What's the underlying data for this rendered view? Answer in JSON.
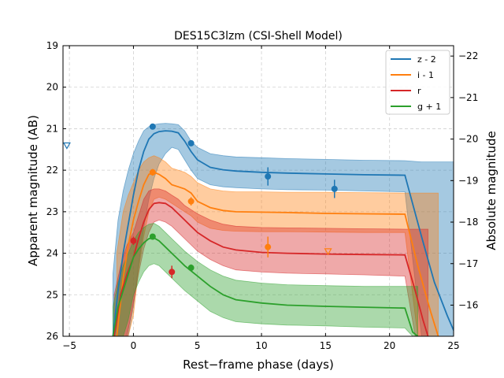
{
  "chart_data": {
    "type": "line",
    "title": "DES15C3lzm (CSI-Shell Model)",
    "xlabel": "Rest−frame phase (days)",
    "ylabel": "Apparent magnitude (AB)",
    "ylabel_right": "Absolute magnitude",
    "xlim": [
      -5.5,
      25
    ],
    "ylim": [
      26,
      19
    ],
    "ylim_right": [
      -15.25,
      -22.25
    ],
    "x_ticks": [
      -5,
      0,
      5,
      10,
      15,
      20,
      25
    ],
    "y_ticks": [
      19,
      20,
      21,
      22,
      23,
      24,
      25,
      26
    ],
    "y_right_ticks": [
      -16,
      -17,
      -18,
      -19,
      -20,
      -21,
      -22
    ],
    "grid": true,
    "legend_position": "top-right",
    "series": [
      {
        "name": "z - 2",
        "color": "#1f77b4",
        "model": {
          "x": [
            -1.6,
            -1.2,
            -0.8,
            -0.4,
            0,
            0.4,
            0.8,
            1.2,
            1.6,
            2,
            2.5,
            3,
            3.5,
            4,
            4.5,
            5,
            6,
            7,
            8,
            10,
            12,
            15,
            18,
            21.2,
            22.5,
            23.5,
            24.5,
            25.2
          ],
          "y": [
            26,
            24.9,
            24.0,
            23.3,
            22.6,
            22.0,
            21.55,
            21.25,
            21.12,
            21.07,
            21.05,
            21.06,
            21.1,
            21.3,
            21.55,
            21.75,
            21.93,
            21.99,
            22.02,
            22.05,
            22.07,
            22.09,
            22.11,
            22.12,
            23.6,
            24.7,
            25.5,
            26
          ],
          "band_upper": [
            24.5,
            23.2,
            22.5,
            22.0,
            21.6,
            21.3,
            21.05,
            20.95,
            20.9,
            20.88,
            20.87,
            20.88,
            20.9,
            21.05,
            21.3,
            21.45,
            21.6,
            21.65,
            21.68,
            21.7,
            21.72,
            21.74,
            21.76,
            21.77,
            21.8,
            21.8,
            21.8,
            21.8
          ],
          "band_lower": [
            26,
            26,
            26,
            26,
            25.3,
            24.3,
            23.4,
            22.7,
            22.2,
            21.85,
            21.6,
            21.45,
            21.5,
            21.75,
            22.0,
            22.2,
            22.35,
            22.4,
            22.42,
            22.45,
            22.47,
            22.48,
            22.5,
            22.52,
            26,
            26,
            26,
            26
          ]
        },
        "observations": [
          {
            "x": 1.5,
            "y": 20.95,
            "yerr": 0.05
          },
          {
            "x": 4.5,
            "y": 21.35,
            "yerr": 0.05
          },
          {
            "x": 10.5,
            "y": 22.15,
            "yerr": 0.22
          },
          {
            "x": 15.7,
            "y": 22.45,
            "yerr": 0.22
          }
        ],
        "upper_limits": [
          {
            "x": -5.2,
            "y": 21.4
          }
        ]
      },
      {
        "name": "i - 1",
        "color": "#ff7f0e",
        "model": {
          "x": [
            -1.3,
            -0.8,
            -0.4,
            0,
            0.4,
            0.8,
            1.2,
            1.6,
            2,
            2.5,
            3,
            3.5,
            4,
            4.5,
            5,
            6,
            7,
            8,
            10,
            12,
            15,
            18,
            21.2,
            22.2,
            23.2,
            23.8
          ],
          "y": [
            26,
            24.6,
            23.8,
            23.2,
            22.75,
            22.35,
            22.1,
            22.05,
            22.1,
            22.2,
            22.35,
            22.4,
            22.45,
            22.55,
            22.75,
            22.9,
            22.97,
            23.0,
            23.01,
            23.02,
            23.04,
            23.05,
            23.06,
            24.3,
            25.4,
            26
          ],
          "band_upper": [
            24.0,
            23.0,
            22.6,
            22.3,
            22.0,
            21.8,
            21.7,
            21.65,
            21.7,
            21.8,
            21.95,
            22.0,
            22.05,
            22.15,
            22.3,
            22.45,
            22.5,
            22.52,
            22.52,
            22.53,
            22.53,
            22.54,
            22.55,
            22.55,
            22.55,
            22.55
          ],
          "band_lower": [
            26,
            26,
            26,
            25.5,
            24.4,
            23.6,
            23.0,
            22.7,
            22.65,
            22.7,
            22.8,
            22.9,
            23.0,
            23.1,
            23.25,
            23.4,
            23.45,
            23.47,
            23.48,
            23.48,
            23.49,
            23.5,
            23.5,
            26,
            26,
            26
          ]
        },
        "observations": [
          {
            "x": 1.5,
            "y": 22.05,
            "yerr": 0.08
          },
          {
            "x": 4.5,
            "y": 22.75,
            "yerr": 0.1
          },
          {
            "x": 10.5,
            "y": 23.85,
            "yerr": 0.25
          }
        ],
        "upper_limits": [
          {
            "x": 15.2,
            "y": 23.95
          }
        ]
      },
      {
        "name": "r",
        "color": "#d62728",
        "model": {
          "x": [
            -1.5,
            -1.0,
            -0.5,
            0,
            0.4,
            0.8,
            1.2,
            1.6,
            2,
            2.5,
            3,
            3.5,
            4,
            4.5,
            5,
            6,
            7,
            8,
            10,
            12,
            15,
            18,
            21.2,
            22.0,
            22.6,
            23.0
          ],
          "y": [
            26,
            25.0,
            24.5,
            24.1,
            23.65,
            23.25,
            22.95,
            22.8,
            22.78,
            22.8,
            22.9,
            23.05,
            23.2,
            23.35,
            23.5,
            23.7,
            23.85,
            23.92,
            23.98,
            24.0,
            24.02,
            24.03,
            24.04,
            24.9,
            25.6,
            26
          ],
          "band_upper": [
            25.0,
            24.3,
            23.8,
            23.5,
            23.1,
            22.7,
            22.5,
            22.45,
            22.45,
            22.5,
            22.6,
            22.7,
            22.85,
            22.95,
            23.05,
            23.2,
            23.3,
            23.35,
            23.38,
            23.39,
            23.4,
            23.41,
            23.42,
            23.42,
            23.42,
            23.42
          ],
          "band_lower": [
            26,
            26,
            26,
            25.2,
            24.5,
            23.9,
            23.5,
            23.25,
            23.2,
            23.25,
            23.35,
            23.5,
            23.65,
            23.8,
            23.95,
            24.15,
            24.3,
            24.4,
            24.45,
            24.48,
            24.5,
            24.52,
            24.55,
            26,
            26,
            26
          ]
        },
        "observations": [
          {
            "x": 0.0,
            "y": 23.7,
            "yerr": 0.1
          },
          {
            "x": 3.0,
            "y": 24.45,
            "yerr": 0.15
          }
        ],
        "upper_limits": []
      },
      {
        "name": "g + 1",
        "color": "#2ca02c",
        "model": {
          "x": [
            -1.6,
            -1.2,
            -0.8,
            -0.4,
            0,
            0.4,
            0.8,
            1.2,
            1.6,
            2,
            2.5,
            3,
            3.5,
            4,
            5,
            6,
            7,
            8,
            10,
            12,
            15,
            18,
            21.2,
            21.8,
            22.2
          ],
          "y": [
            26,
            25.3,
            24.9,
            24.5,
            24.1,
            23.9,
            23.75,
            23.65,
            23.63,
            23.7,
            23.85,
            24.0,
            24.15,
            24.3,
            24.55,
            24.8,
            25.0,
            25.12,
            25.2,
            25.25,
            25.28,
            25.3,
            25.32,
            25.9,
            26
          ],
          "band_upper": [
            25.3,
            24.7,
            24.3,
            24.0,
            23.7,
            23.5,
            23.38,
            23.3,
            23.28,
            23.35,
            23.5,
            23.65,
            23.8,
            23.95,
            24.2,
            24.4,
            24.55,
            24.65,
            24.72,
            24.76,
            24.78,
            24.8,
            24.8,
            24.8,
            24.8
          ],
          "band_lower": [
            26,
            26,
            26,
            25.6,
            25.0,
            24.7,
            24.45,
            24.3,
            24.25,
            24.3,
            24.45,
            24.6,
            24.75,
            24.9,
            25.15,
            25.4,
            25.55,
            25.65,
            25.7,
            25.73,
            25.75,
            25.78,
            25.8,
            26,
            26
          ]
        },
        "observations": [
          {
            "x": 1.5,
            "y": 23.6,
            "yerr": 0.05
          },
          {
            "x": 4.5,
            "y": 24.35,
            "yerr": 0.08
          }
        ],
        "upper_limits": []
      }
    ]
  }
}
